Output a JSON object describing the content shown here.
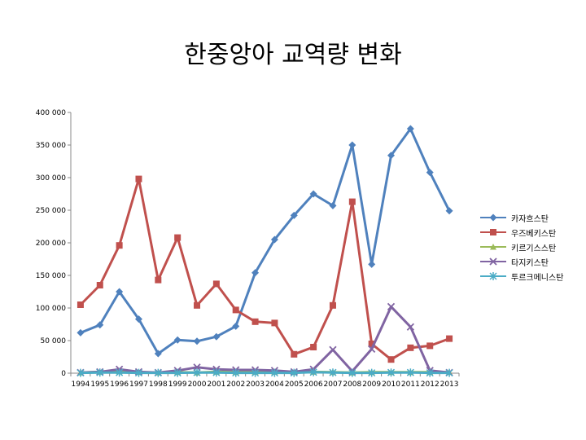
{
  "chart_data": {
    "type": "line",
    "title": "한중앙아 교역량 변화",
    "xlabel": "",
    "ylabel": "",
    "categories": [
      "1994",
      "1995",
      "1996",
      "1997",
      "1998",
      "1999",
      "2000",
      "2001",
      "2002",
      "2003",
      "2004",
      "2005",
      "2006",
      "2007",
      "2008",
      "2009",
      "2010",
      "2011",
      "2012",
      "2013"
    ],
    "ylim": [
      0,
      400000
    ],
    "yticks": [
      0,
      50000,
      100000,
      150000,
      200000,
      250000,
      300000,
      350000,
      400000
    ],
    "ytick_labels": [
      "0",
      "50 000",
      "100 000",
      "150 000",
      "200 000",
      "250 000",
      "300 000",
      "350 000",
      "400 000"
    ],
    "legend_position": "right",
    "grid": false,
    "series": [
      {
        "name": "카자흐스탄",
        "color": "#4f81bd",
        "marker": "diamond",
        "values": [
          62000,
          74000,
          125000,
          83000,
          30000,
          51000,
          49000,
          56000,
          72000,
          154000,
          205000,
          242000,
          275000,
          257000,
          350000,
          167000,
          334000,
          375000,
          308000,
          249000
        ]
      },
      {
        "name": "우즈베키스탄",
        "color": "#c0504d",
        "marker": "square",
        "values": [
          105000,
          135000,
          196000,
          298000,
          143000,
          208000,
          104000,
          137000,
          97000,
          79000,
          77000,
          29000,
          40000,
          104000,
          263000,
          45000,
          21000,
          39000,
          42000,
          53000
        ]
      },
      {
        "name": "키르기스스탄",
        "color": "#9bbb59",
        "marker": "triangle",
        "values": [
          1000,
          2000,
          3000,
          1500,
          1000,
          1500,
          1000,
          2000,
          1500,
          2000,
          2000,
          1500,
          2000,
          1500,
          1000,
          1500,
          1500,
          1500,
          1500,
          1500
        ]
      },
      {
        "name": "타지키스탄",
        "color": "#8064a2",
        "marker": "x",
        "values": [
          1000,
          2000,
          6000,
          2000,
          1000,
          4000,
          9000,
          6000,
          5000,
          5000,
          4000,
          2000,
          6000,
          36000,
          3000,
          37000,
          102000,
          71000,
          4000,
          1000
        ]
      },
      {
        "name": "투르크메니스탄",
        "color": "#4bacc6",
        "marker": "star",
        "values": [
          500,
          1000,
          1000,
          500,
          500,
          500,
          1000,
          1000,
          500,
          500,
          500,
          500,
          1500,
          1000,
          500,
          500,
          1000,
          1000,
          500,
          500
        ]
      }
    ]
  }
}
